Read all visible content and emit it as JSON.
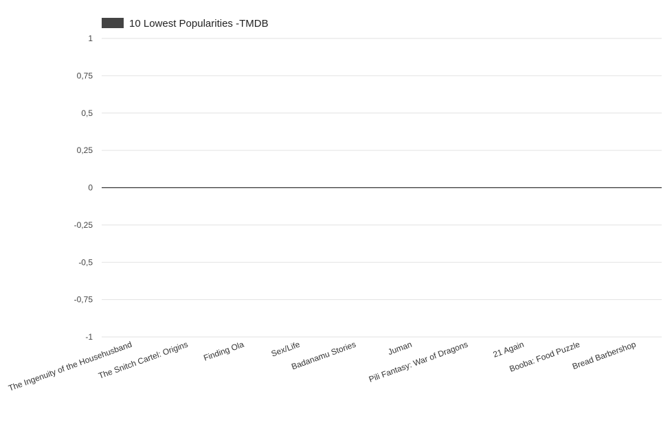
{
  "chart_data": {
    "type": "bar",
    "categories": [
      "The Ingenuity of the Househusband",
      "The Snitch Cartel: Origins",
      "Finding Ola",
      "Sex/Life",
      "Badanamu Stories",
      "Juman",
      "Pili Fantasy: War of Dragons",
      "21 Again",
      "Booba: Food Puzzle",
      "Bread Barbershop"
    ],
    "series": [
      {
        "name": "10 Lowest Popularities -TMDB",
        "values": [
          0,
          0,
          0,
          0,
          0,
          0,
          0,
          0,
          0,
          0
        ],
        "color": "#444444"
      }
    ],
    "ylim": [
      -1,
      1
    ],
    "yticks": [
      {
        "value": 1,
        "label": "1"
      },
      {
        "value": 0.75,
        "label": "0,75"
      },
      {
        "value": 0.5,
        "label": "0,5"
      },
      {
        "value": 0.25,
        "label": "0,25"
      },
      {
        "value": 0,
        "label": "0"
      },
      {
        "value": -0.25,
        "label": "-0,25"
      },
      {
        "value": -0.5,
        "label": "-0,5"
      },
      {
        "value": -0.75,
        "label": "-0,75"
      },
      {
        "value": -1,
        "label": "-1"
      }
    ],
    "grid": true,
    "legend_position": "top-left",
    "title": "",
    "xlabel": "",
    "ylabel": ""
  }
}
